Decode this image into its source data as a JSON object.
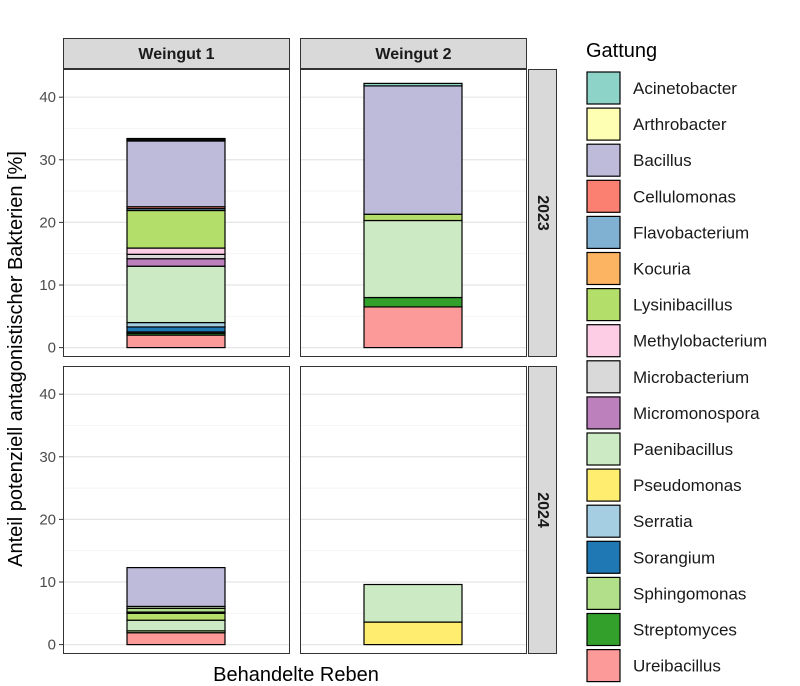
{
  "chart_data": {
    "type": "bar",
    "stacked": true,
    "faceted": true,
    "xlabel": "Behandelte Reben",
    "ylabel": "Anteil potenziell antagonistischer Bakterien [%]",
    "ylim": [
      -1.5,
      44.5
    ],
    "yticks": [
      0,
      10,
      20,
      30,
      40
    ],
    "grid": true,
    "legend_position": "right",
    "legend_title": "Gattung",
    "column_labels": [
      "Weingut 1",
      "Weingut 2"
    ],
    "row_labels": [
      "2023",
      "2024"
    ],
    "genera": [
      {
        "name": "Acinetobacter",
        "color": "#8DD3C7"
      },
      {
        "name": "Arthrobacter",
        "color": "#FFFFB3"
      },
      {
        "name": "Bacillus",
        "color": "#BEBADA"
      },
      {
        "name": "Cellulomonas",
        "color": "#FB8072"
      },
      {
        "name": "Flavobacterium",
        "color": "#80B1D3"
      },
      {
        "name": "Kocuria",
        "color": "#FDB462"
      },
      {
        "name": "Lysinibacillus",
        "color": "#B3DE69"
      },
      {
        "name": "Methylobacterium",
        "color": "#FCCDE5"
      },
      {
        "name": "Microbacterium",
        "color": "#D9D9D9"
      },
      {
        "name": "Micromonospora",
        "color": "#BC80BD"
      },
      {
        "name": "Paenibacillus",
        "color": "#CCEBC5"
      },
      {
        "name": "Pseudomonas",
        "color": "#FFED6F"
      },
      {
        "name": "Serratia",
        "color": "#A6CEE3"
      },
      {
        "name": "Sorangium",
        "color": "#1F78B4"
      },
      {
        "name": "Sphingomonas",
        "color": "#B2DF8A"
      },
      {
        "name": "Streptomyces",
        "color": "#33A02C"
      },
      {
        "name": "Ureibacillus",
        "color": "#FB9A99"
      }
    ],
    "panels": [
      {
        "column": "Weingut 1",
        "row": "2023",
        "segments": [
          {
            "genus": "Ureibacillus",
            "value": 2.0
          },
          {
            "genus": "Streptomyces",
            "value": 0.3
          },
          {
            "genus": "Sphingomonas",
            "value": 0.2
          },
          {
            "genus": "Sorangium",
            "value": 0.8
          },
          {
            "genus": "Serratia",
            "value": 0.7
          },
          {
            "genus": "Paenibacillus",
            "value": 9.0
          },
          {
            "genus": "Micromonospora",
            "value": 1.2
          },
          {
            "genus": "Microbacterium",
            "value": 0.7
          },
          {
            "genus": "Methylobacterium",
            "value": 1.0
          },
          {
            "genus": "Lysinibacillus",
            "value": 6.0
          },
          {
            "genus": "Flavobacterium",
            "value": 0.3
          },
          {
            "genus": "Cellulomonas",
            "value": 0.3
          },
          {
            "genus": "Bacillus",
            "value": 10.5
          },
          {
            "genus": "Arthrobacter",
            "value": 0.2
          },
          {
            "genus": "Acinetobacter",
            "value": 0.2
          }
        ]
      },
      {
        "column": "Weingut 2",
        "row": "2023",
        "segments": [
          {
            "genus": "Ureibacillus",
            "value": 6.5
          },
          {
            "genus": "Streptomyces",
            "value": 1.5
          },
          {
            "genus": "Paenibacillus",
            "value": 12.3
          },
          {
            "genus": "Lysinibacillus",
            "value": 1.0
          },
          {
            "genus": "Bacillus",
            "value": 20.5
          },
          {
            "genus": "Acinetobacter",
            "value": 0.4
          }
        ]
      },
      {
        "column": "Weingut 1",
        "row": "2024",
        "segments": [
          {
            "genus": "Ureibacillus",
            "value": 1.9
          },
          {
            "genus": "Sphingomonas",
            "value": 0.3
          },
          {
            "genus": "Paenibacillus",
            "value": 1.7
          },
          {
            "genus": "Lysinibacillus",
            "value": 1.1
          },
          {
            "genus": "Micromonospora",
            "value": 0.2
          },
          {
            "genus": "Sphingomonas",
            "value": 0.6
          },
          {
            "genus": "Paenibacillus",
            "value": 0.3
          },
          {
            "genus": "Bacillus",
            "value": 6.2
          }
        ]
      },
      {
        "column": "Weingut 2",
        "row": "2024",
        "segments": [
          {
            "genus": "Pseudomonas",
            "value": 3.6
          },
          {
            "genus": "Paenibacillus",
            "value": 6.0
          }
        ]
      }
    ]
  }
}
